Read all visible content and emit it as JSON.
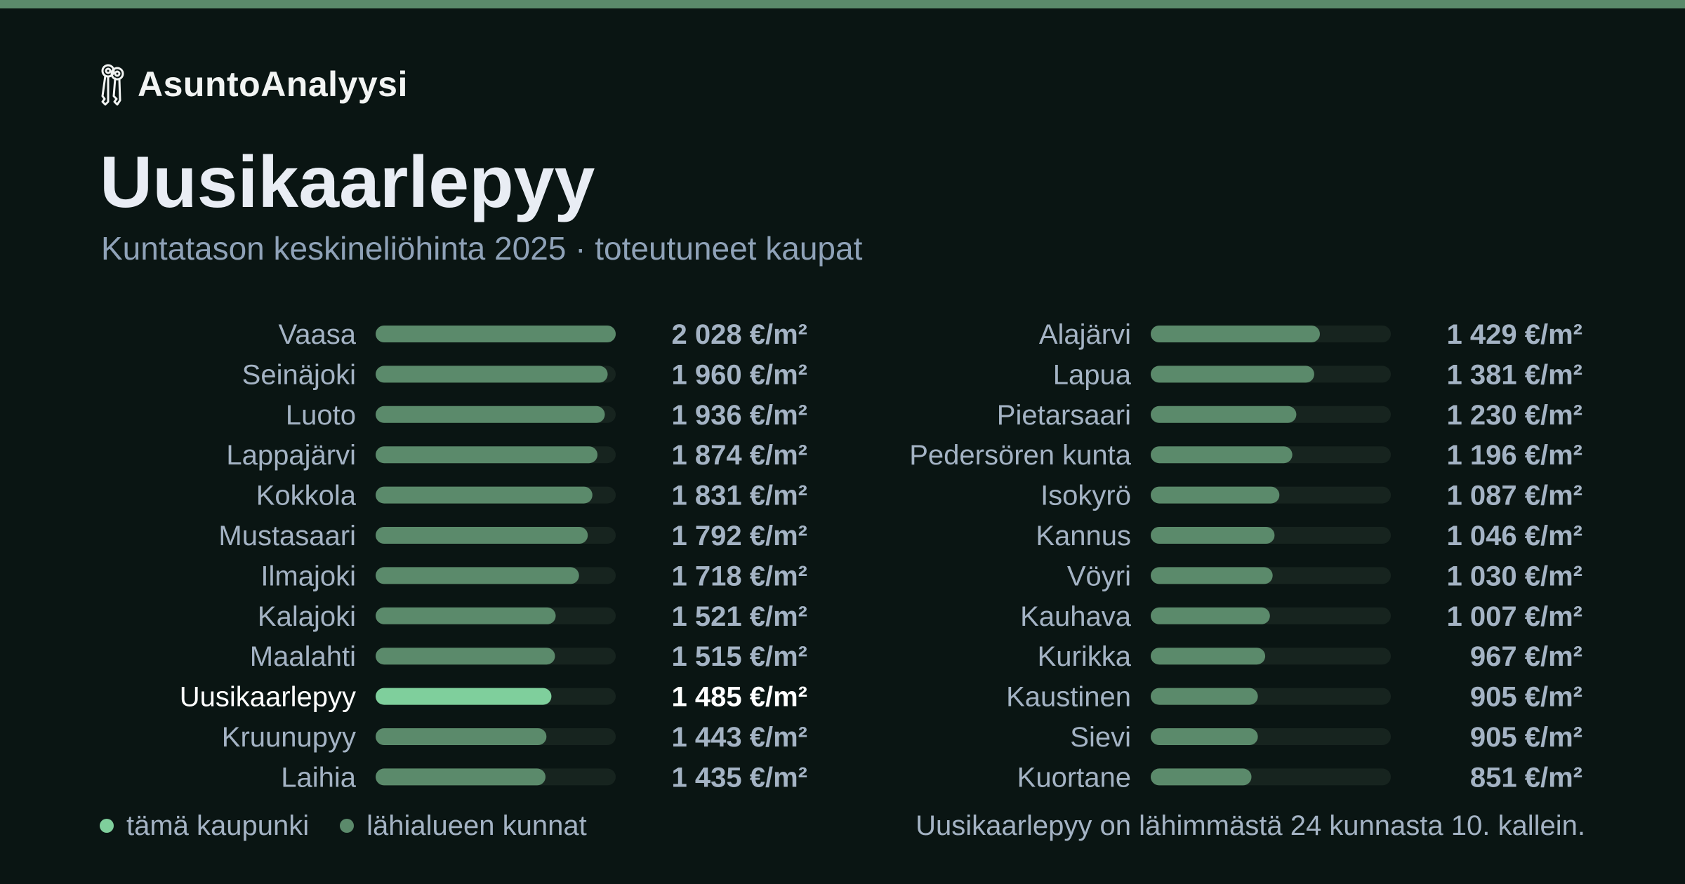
{
  "brand": {
    "name": "AsuntoAnalyysi",
    "icon": "keys-icon"
  },
  "title": "Uusikaarlepyy",
  "subtitle": "Kuntatason keskineliöhinta 2025 · toteutuneet kaupat",
  "colors": {
    "background": "#0a1513",
    "stripe": "#5b8a6b",
    "highlight_bar": "#7fcf9c",
    "neighbor_bar": "#5b8a6b",
    "bar_track": "#17241f",
    "label": "#a4b3c4",
    "highlight_label": "#ffffff"
  },
  "chart_data": {
    "type": "bar",
    "orientation": "horizontal",
    "unit": "€/m²",
    "xlim": [
      0,
      2028
    ],
    "highlight": "Uusikaarlepyy",
    "columns": [
      {
        "categories": [
          "Vaasa",
          "Seinäjoki",
          "Luoto",
          "Lappajärvi",
          "Kokkola",
          "Mustasaari",
          "Ilmajoki",
          "Kalajoki",
          "Maalahti",
          "Uusikaarlepyy",
          "Kruunupyy",
          "Laihia"
        ],
        "values": [
          2028,
          1960,
          1936,
          1874,
          1831,
          1792,
          1718,
          1521,
          1515,
          1485,
          1443,
          1435
        ],
        "value_labels": [
          "2 028 €/m²",
          "1 960 €/m²",
          "1 936 €/m²",
          "1 874 €/m²",
          "1 831 €/m²",
          "1 792 €/m²",
          "1 718 €/m²",
          "1 521 €/m²",
          "1 515 €/m²",
          "1 485 €/m²",
          "1 443 €/m²",
          "1 435 €/m²"
        ]
      },
      {
        "categories": [
          "Alajärvi",
          "Lapua",
          "Pietarsaari",
          "Pedersören kunta",
          "Isokyrö",
          "Kannus",
          "Vöyri",
          "Kauhava",
          "Kurikka",
          "Kaustinen",
          "Sievi",
          "Kuortane"
        ],
        "values": [
          1429,
          1381,
          1230,
          1196,
          1087,
          1046,
          1030,
          1007,
          967,
          905,
          905,
          851
        ],
        "value_labels": [
          "1 429 €/m²",
          "1 381 €/m²",
          "1 230 €/m²",
          "1 196 €/m²",
          "1 087 €/m²",
          "1 046 €/m²",
          "1 030 €/m²",
          "1 007 €/m²",
          "967 €/m²",
          "905 €/m²",
          "905 €/m²",
          "851 €/m²"
        ]
      }
    ]
  },
  "legend": {
    "this_city": "tämä kaupunki",
    "neighbors": "lähialueen kunnat"
  },
  "footnote": "Uusikaarlepyy on lähimmästä 24 kunnasta 10. kallein."
}
